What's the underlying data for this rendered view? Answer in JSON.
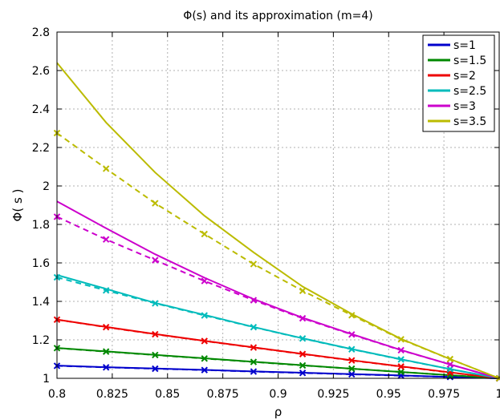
{
  "chart_data": {
    "type": "line",
    "title": "Φ(s) and its approximation (m=4)",
    "xlabel": "ρ",
    "ylabel": "Φ( s )",
    "xlim": [
      0.8,
      1.0
    ],
    "ylim": [
      1.0,
      2.8
    ],
    "x_ticks": [
      "0.8",
      "0.825",
      "0.85",
      "0.875",
      "0.9",
      "0.925",
      "0.95",
      "0.975",
      "1"
    ],
    "y_ticks": [
      "1",
      "1.2",
      "1.4",
      "1.6",
      "1.8",
      "2",
      "2.2",
      "2.4",
      "2.6",
      "2.8"
    ],
    "grid": true,
    "legend_position": "top-right",
    "x": [
      0.8,
      0.8222,
      0.8444,
      0.8667,
      0.8889,
      0.9111,
      0.9333,
      0.9556,
      0.9778,
      1.0
    ],
    "series": [
      {
        "name": "s=1",
        "color": "#0000cc",
        "exact": [
          1.066,
          1.058,
          1.051,
          1.044,
          1.036,
          1.029,
          1.022,
          1.015,
          1.007,
          1.0
        ],
        "approx": [
          1.065,
          1.057,
          1.05,
          1.043,
          1.035,
          1.028,
          1.021,
          1.014,
          1.007,
          1.0
        ]
      },
      {
        "name": "s=1.5",
        "color": "#008800",
        "exact": [
          1.158,
          1.14,
          1.122,
          1.104,
          1.086,
          1.068,
          1.05,
          1.033,
          1.016,
          1.0
        ],
        "approx": [
          1.157,
          1.139,
          1.121,
          1.103,
          1.085,
          1.067,
          1.05,
          1.033,
          1.016,
          1.0
        ]
      },
      {
        "name": "s=2",
        "color": "#ee0000",
        "exact": [
          1.305,
          1.267,
          1.23,
          1.195,
          1.161,
          1.127,
          1.094,
          1.062,
          1.031,
          1.0
        ],
        "approx": [
          1.305,
          1.266,
          1.229,
          1.194,
          1.16,
          1.126,
          1.093,
          1.061,
          1.03,
          1.0
        ]
      },
      {
        "name": "s=2.5",
        "color": "#00bbbb",
        "exact": [
          1.537,
          1.465,
          1.392,
          1.33,
          1.267,
          1.208,
          1.152,
          1.099,
          1.048,
          1.0
        ],
        "approx": [
          1.525,
          1.457,
          1.39,
          1.327,
          1.266,
          1.207,
          1.151,
          1.098,
          1.048,
          1.0
        ]
      },
      {
        "name": "s=3",
        "color": "#cc00cc",
        "exact": [
          1.92,
          1.78,
          1.645,
          1.523,
          1.412,
          1.315,
          1.23,
          1.147,
          1.072,
          1.0
        ],
        "approx": [
          1.84,
          1.722,
          1.614,
          1.506,
          1.406,
          1.312,
          1.228,
          1.146,
          1.072,
          1.0
        ]
      },
      {
        "name": "s=3.5",
        "color": "#bbbb00",
        "exact": [
          2.64,
          2.33,
          2.07,
          1.845,
          1.655,
          1.477,
          1.335,
          1.205,
          1.1,
          1.0
        ],
        "approx": [
          2.275,
          2.09,
          1.91,
          1.75,
          1.594,
          1.455,
          1.328,
          1.203,
          1.1,
          1.0
        ]
      }
    ]
  }
}
